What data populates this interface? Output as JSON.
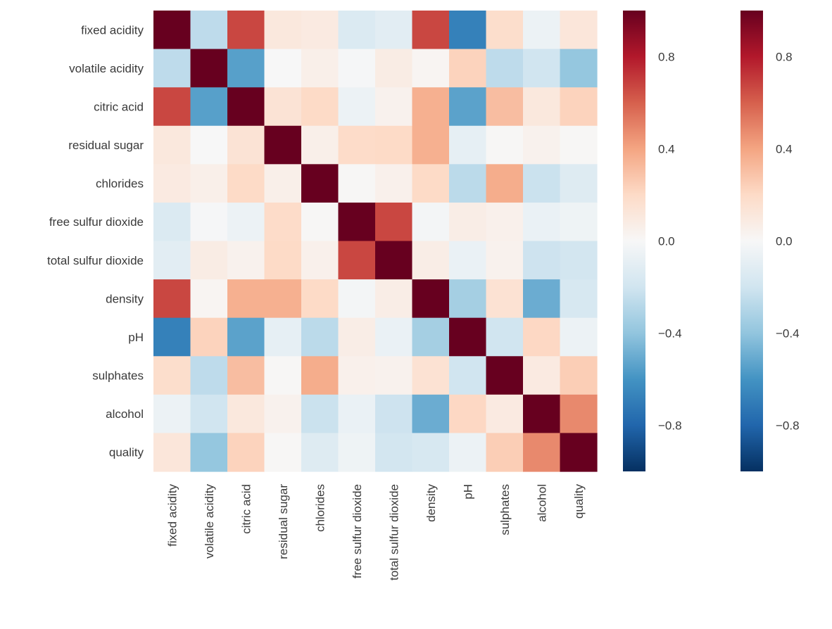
{
  "chart_data": {
    "type": "heatmap",
    "title": "",
    "xlabel": "",
    "ylabel": "",
    "variables": [
      "fixed acidity",
      "volatile acidity",
      "citric acid",
      "residual sugar",
      "chlorides",
      "free sulfur dioxide",
      "total sulfur dioxide",
      "density",
      "pH",
      "sulphates",
      "alcohol",
      "quality"
    ],
    "matrix": [
      [
        1.0,
        -0.26,
        0.67,
        0.11,
        0.09,
        -0.15,
        -0.11,
        0.67,
        -0.68,
        0.18,
        -0.06,
        0.12
      ],
      [
        -0.26,
        1.0,
        -0.55,
        0.0,
        0.06,
        -0.01,
        0.08,
        0.02,
        0.23,
        -0.26,
        -0.2,
        -0.39
      ],
      [
        0.67,
        -0.55,
        1.0,
        0.14,
        0.2,
        -0.06,
        0.04,
        0.36,
        -0.54,
        0.31,
        0.11,
        0.23
      ],
      [
        0.11,
        0.0,
        0.14,
        1.0,
        0.06,
        0.19,
        0.2,
        0.36,
        -0.09,
        0.01,
        0.04,
        0.01
      ],
      [
        0.09,
        0.06,
        0.2,
        0.06,
        1.0,
        0.01,
        0.05,
        0.2,
        -0.27,
        0.37,
        -0.22,
        -0.13
      ],
      [
        -0.15,
        -0.01,
        -0.06,
        0.19,
        0.01,
        1.0,
        0.67,
        -0.02,
        0.07,
        0.05,
        -0.07,
        -0.05
      ],
      [
        -0.11,
        0.08,
        0.04,
        0.2,
        0.05,
        0.67,
        1.0,
        0.07,
        -0.07,
        0.04,
        -0.21,
        -0.19
      ],
      [
        0.67,
        0.02,
        0.36,
        0.36,
        0.2,
        -0.02,
        0.07,
        1.0,
        -0.34,
        0.15,
        -0.5,
        -0.17
      ],
      [
        -0.68,
        0.23,
        -0.54,
        -0.09,
        -0.27,
        0.07,
        -0.07,
        -0.34,
        1.0,
        -0.2,
        0.21,
        -0.06
      ],
      [
        0.18,
        -0.26,
        0.31,
        0.01,
        0.37,
        0.05,
        0.04,
        0.15,
        -0.2,
        1.0,
        0.09,
        0.25
      ],
      [
        -0.06,
        -0.2,
        0.11,
        0.04,
        -0.22,
        -0.07,
        -0.21,
        -0.5,
        0.21,
        0.09,
        1.0,
        0.48
      ],
      [
        0.12,
        -0.39,
        0.23,
        0.01,
        -0.13,
        -0.05,
        -0.19,
        -0.17,
        -0.06,
        0.25,
        0.48,
        1.0
      ]
    ],
    "vmin": -1.0,
    "vmax": 1.0,
    "colormap": "RdBu_r",
    "colorbar_ticks": [
      0.8,
      0.4,
      0.0,
      -0.4,
      -0.8
    ],
    "colorbar_tick_labels": [
      "0.8",
      "0.4",
      "0.0",
      "−0.4",
      "−0.8"
    ],
    "colorbar_count": 2,
    "colors": {
      "stops": [
        "#053061",
        "#2166ac",
        "#4393c3",
        "#92c5de",
        "#d1e5f0",
        "#f7f7f7",
        "#fddbc7",
        "#f4a582",
        "#d6604d",
        "#b2182b",
        "#67001f"
      ],
      "label_text": "#3a3a3a",
      "background": "#ffffff"
    }
  }
}
